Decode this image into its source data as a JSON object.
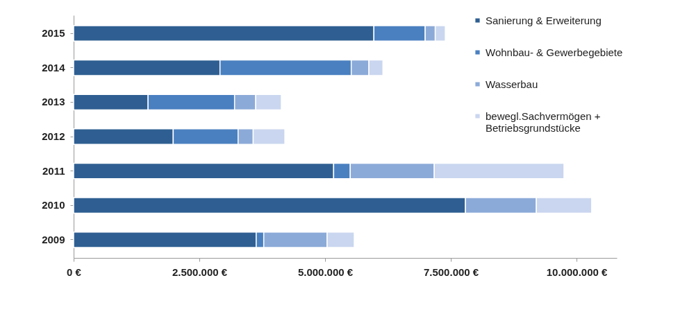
{
  "chart_data": {
    "type": "bar",
    "orientation": "horizontal",
    "stacked": true,
    "categories": [
      "2015",
      "2014",
      "2013",
      "2012",
      "2011",
      "2010",
      "2009"
    ],
    "series": [
      {
        "name": "Sanierung & Erweiterung",
        "color": "#2f5f92",
        "values": [
          5970000,
          2910000,
          1480000,
          1980000,
          5170000,
          7790000,
          3630000
        ]
      },
      {
        "name": "Wohnbau- & Gewerbegebiete",
        "color": "#4a80c0",
        "values": [
          1020000,
          2610000,
          1720000,
          1290000,
          330000,
          null,
          150000
        ]
      },
      {
        "name": "Wasserbau",
        "color": "#8caad8",
        "values": [
          200000,
          350000,
          420000,
          300000,
          1670000,
          1410000,
          1260000
        ]
      },
      {
        "name": "bewegl.Sachvermögen + Betriebsgrundstücke",
        "color": "#cad6ef",
        "values": [
          200000,
          280000,
          510000,
          630000,
          2580000,
          1100000,
          540000
        ]
      }
    ],
    "xlim": [
      0,
      10800000
    ],
    "xticks": [
      {
        "value": 0,
        "label": "0 €"
      },
      {
        "value": 2500000,
        "label": "2.500.000 €"
      },
      {
        "value": 5000000,
        "label": "5.000.000 €"
      },
      {
        "value": 7500000,
        "label": "7.500.000 €"
      },
      {
        "value": 10000000,
        "label": "10.000.000 €"
      }
    ],
    "grid": false,
    "legend": "top right"
  }
}
